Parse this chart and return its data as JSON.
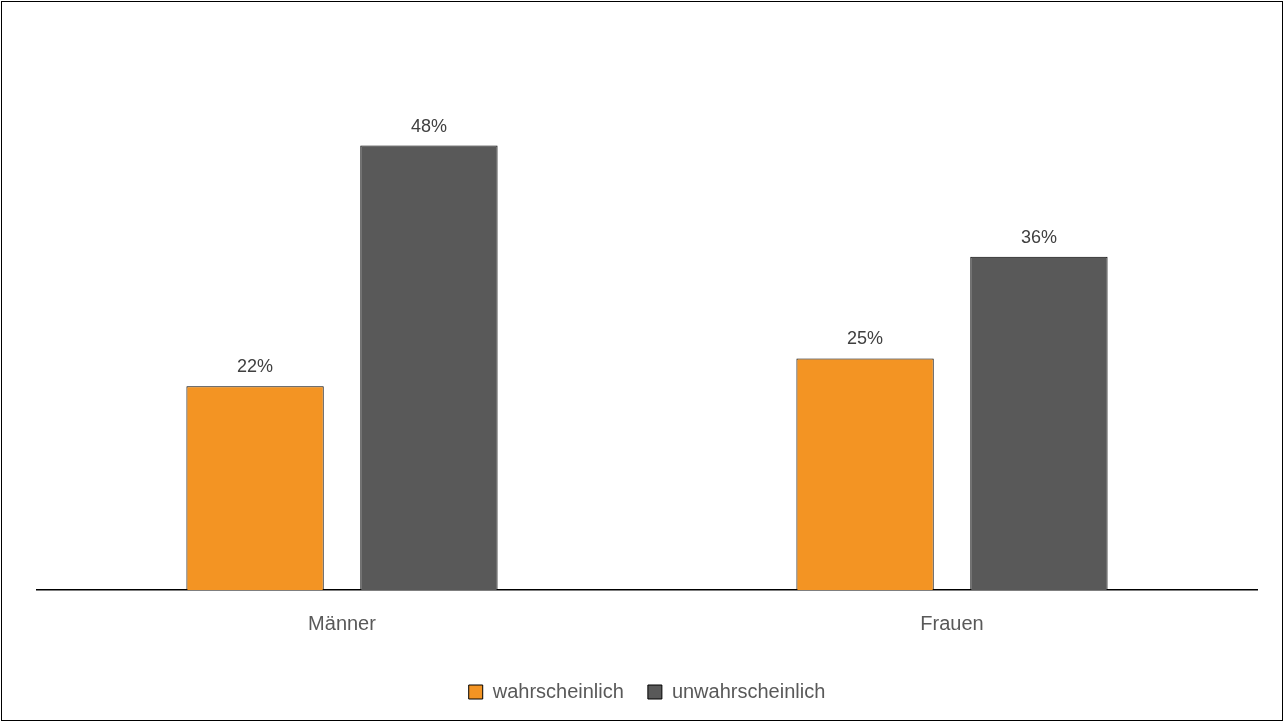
{
  "chart_data": {
    "type": "bar",
    "categories": [
      "Männer",
      "Frauen"
    ],
    "series": [
      {
        "name": "wahrscheinlich",
        "color": "#f39423",
        "values": [
          22,
          25
        ],
        "value_labels": [
          "22%",
          "25%"
        ]
      },
      {
        "name": "unwahrscheinlich",
        "color": "#595959",
        "values": [
          48,
          36
        ],
        "value_labels": [
          "48%",
          "36%"
        ]
      }
    ],
    "legend": "bottom",
    "grid": false
  }
}
